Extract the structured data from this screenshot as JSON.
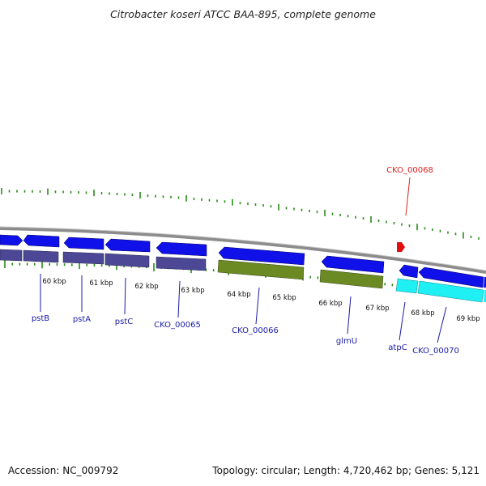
{
  "title": "Citrobacter koseri ATCC BAA-895, complete genome",
  "accession": "Accession: NC_009792",
  "topology": "Topology: circular; Length: 4,720,462 bp; Genes: 5,121",
  "colors": {
    "gene_forward": "#1010e8",
    "cds_purple": "#4c4896",
    "cds_green": "#6b8a23",
    "cds_cyan": "#1ff0f4",
    "label_blue": "#1a1aa8",
    "label_red": "#d82020",
    "tick_green": "#2a8a1a",
    "backbone": "#8c8c8c"
  },
  "kbp_labels": [
    {
      "label": "60 kbp",
      "pos": 60
    },
    {
      "label": "61 kbp",
      "pos": 61
    },
    {
      "label": "62 kbp",
      "pos": 62
    },
    {
      "label": "63 kbp",
      "pos": 63
    },
    {
      "label": "64 kbp",
      "pos": 64
    },
    {
      "label": "65 kbp",
      "pos": 65
    },
    {
      "label": "66 kbp",
      "pos": 66
    },
    {
      "label": "67 kbp",
      "pos": 67
    },
    {
      "label": "68 kbp",
      "pos": 68
    },
    {
      "label": "69 kbp",
      "pos": 69
    }
  ],
  "gene_labels": [
    {
      "name": "pstB",
      "color": "blue"
    },
    {
      "name": "pstA",
      "color": "blue"
    },
    {
      "name": "pstC",
      "color": "blue"
    },
    {
      "name": "CKO_00065",
      "color": "blue"
    },
    {
      "name": "CKO_00066",
      "color": "blue"
    },
    {
      "name": "glmU",
      "color": "blue"
    },
    {
      "name": "atpC",
      "color": "blue"
    },
    {
      "name": "CKO_00070",
      "color": "blue"
    },
    {
      "name": "CKO_00068",
      "color": "red"
    }
  ]
}
